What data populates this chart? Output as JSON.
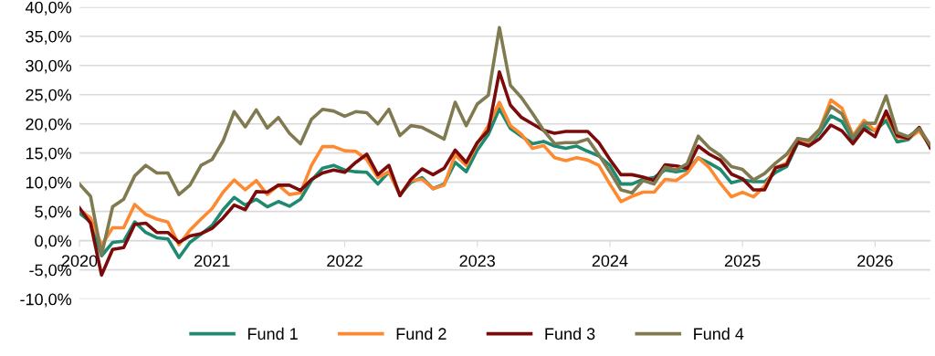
{
  "chart_data": {
    "type": "line",
    "categories": [
      "2020",
      null,
      null,
      null,
      null,
      null,
      null,
      null,
      null,
      null,
      null,
      null,
      "2021",
      null,
      null,
      null,
      null,
      null,
      null,
      null,
      null,
      null,
      null,
      null,
      "2022",
      null,
      null,
      null,
      null,
      null,
      null,
      null,
      null,
      null,
      null,
      null,
      "2023",
      null,
      null,
      null,
      null,
      null,
      null,
      null,
      null,
      null,
      null,
      null,
      "2024",
      null,
      null,
      null,
      null,
      null,
      null,
      null,
      null,
      null,
      null,
      null,
      "2025",
      null,
      null,
      null,
      null,
      null,
      null,
      null,
      null,
      null,
      null,
      null,
      "2026",
      null,
      null,
      null,
      null,
      null
    ],
    "series": [
      {
        "name": "Fund 1",
        "color": "#1f8a70",
        "values": [
          4.7,
          3.2,
          -2.6,
          -0.3,
          -0.1,
          3.2,
          1.4,
          0.5,
          0.3,
          -2.9,
          -0.3,
          1.1,
          2.6,
          5.3,
          7.4,
          6.1,
          7.1,
          5.8,
          6.7,
          5.9,
          7.1,
          10.3,
          12.4,
          12.9,
          12.1,
          11.8,
          11.7,
          9.7,
          11.8,
          7.9,
          10,
          10.8,
          8.9,
          9.7,
          13.4,
          11.8,
          15.5,
          18.2,
          22.6,
          19.2,
          17.9,
          16.6,
          17,
          16.2,
          15.8,
          16.2,
          15.3,
          14.5,
          12.9,
          9.7,
          9.7,
          10.5,
          10.8,
          12.1,
          11.8,
          12.1,
          14.2,
          13.3,
          12.2,
          9.9,
          10.4,
          10.1,
          10.1,
          11.7,
          12.7,
          16.7,
          16.4,
          18.5,
          21.4,
          20.4,
          17.2,
          19.6,
          18.8,
          20.6,
          16.9,
          17.3,
          19.1,
          16.2
        ]
      },
      {
        "name": "Fund 2",
        "color": "#fd8a30",
        "values": [
          5.3,
          3.9,
          -0.8,
          2.2,
          2.2,
          6.2,
          4.5,
          3.7,
          3.2,
          -0.7,
          1.8,
          3.7,
          5.5,
          8.3,
          10.4,
          8.7,
          10.3,
          7.9,
          9.5,
          7.9,
          8.2,
          12.9,
          16.1,
          16.1,
          15.4,
          15.3,
          13.9,
          10.8,
          11.8,
          7.9,
          10.3,
          10.5,
          8.9,
          9.5,
          14.7,
          12.9,
          16.6,
          19.7,
          23.7,
          19.7,
          18.2,
          15.8,
          16.3,
          14.2,
          13.7,
          14.2,
          13.8,
          12.9,
          9.7,
          6.7,
          7.6,
          8.3,
          8.3,
          10.5,
          10.3,
          11.6,
          14.2,
          12.5,
          9.8,
          7.5,
          8.3,
          7.5,
          9.3,
          12.5,
          13.3,
          17.5,
          16.9,
          19.1,
          24.1,
          22.7,
          18,
          20.6,
          18.8,
          21.7,
          17.7,
          17.5,
          18.8,
          16.2
        ]
      },
      {
        "name": "Fund 3",
        "color": "#7b0a0a",
        "values": [
          5.6,
          3,
          -5.9,
          -1.5,
          -1.2,
          2.8,
          3,
          1.4,
          1.4,
          -0.3,
          0.8,
          1.2,
          2.1,
          3.9,
          6.1,
          5.3,
          8.4,
          8.3,
          9.5,
          9.5,
          8.6,
          10.5,
          11.6,
          12.1,
          11.7,
          13.4,
          14.8,
          11.3,
          12.9,
          7.7,
          10.5,
          12.3,
          11.3,
          12.4,
          15.5,
          13.4,
          16.8,
          18.9,
          28.9,
          23.2,
          21.1,
          20,
          18.9,
          18.4,
          18.7,
          18.7,
          18.7,
          16.8,
          13.9,
          11.3,
          11.3,
          10.9,
          10.3,
          13,
          12.8,
          12.4,
          16.2,
          14.8,
          13.8,
          11.4,
          10.6,
          8.7,
          8.7,
          12.5,
          13,
          16.9,
          16.2,
          17.5,
          19.8,
          18.8,
          16.6,
          19.1,
          17.8,
          22.2,
          18,
          17.5,
          19.4,
          15.9
        ]
      },
      {
        "name": "Fund 4",
        "color": "#807a50",
        "values": [
          9.7,
          7.6,
          -2.4,
          5.8,
          7.1,
          11.1,
          12.9,
          11.6,
          11.6,
          7.9,
          9.5,
          12.9,
          13.9,
          17.1,
          22.1,
          19.5,
          22.4,
          19.3,
          21.1,
          18.4,
          16.6,
          20.8,
          22.5,
          22.2,
          21.3,
          22.1,
          21.9,
          20,
          22.5,
          18,
          19.7,
          19.4,
          18.4,
          17.4,
          23.7,
          19.7,
          23.4,
          24.9,
          36.5,
          26.6,
          24.5,
          21.8,
          18.9,
          16.6,
          16.8,
          16.8,
          17.4,
          14.7,
          11.8,
          8.7,
          8.2,
          10.3,
          9.7,
          12.6,
          12.1,
          13.2,
          17.9,
          15.9,
          14.6,
          12.7,
          12.2,
          10.4,
          11.5,
          13.3,
          14.8,
          17.5,
          17.2,
          19.1,
          23,
          21.7,
          17.7,
          20.1,
          20.1,
          24.8,
          18.5,
          17.8,
          19.2,
          16.4
        ]
      }
    ],
    "ylim": [
      -10,
      40
    ],
    "yticks": [
      {
        "value": -10,
        "label": "-10,0%"
      },
      {
        "value": -5,
        "label": "-5,0%"
      },
      {
        "value": 0,
        "label": "0,0%"
      },
      {
        "value": 5,
        "label": "5,0%"
      },
      {
        "value": 10,
        "label": "10,0%"
      },
      {
        "value": 15,
        "label": "15,0%"
      },
      {
        "value": 20,
        "label": "20,0%"
      },
      {
        "value": 25,
        "label": "25,0%"
      },
      {
        "value": 30,
        "label": "30,0%"
      },
      {
        "value": 35,
        "label": "35,0%"
      },
      {
        "value": 40,
        "label": "40,0%"
      }
    ],
    "grid": "y",
    "legend": "bottom",
    "marker": "none",
    "line_style": "solid"
  }
}
